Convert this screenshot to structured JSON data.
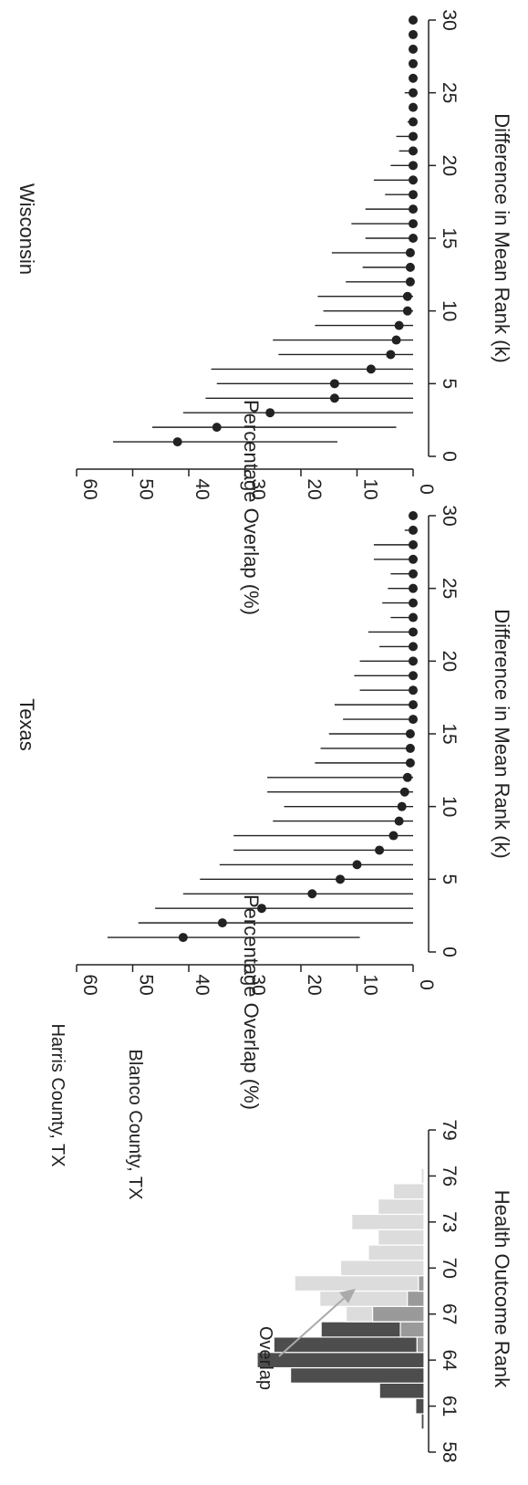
{
  "colors": {
    "harris": "#4d4d4d",
    "blanco": "#dcdcdc",
    "overlap": "#9a9a9a",
    "ink": "#222222",
    "arrow": "#aaaaaa"
  },
  "chart_data": [
    {
      "type": "bar",
      "title": "",
      "xlabel": "Health Outcome Rank",
      "ylabel": "",
      "xlim": [
        58,
        79
      ],
      "x_ticks": [
        58,
        61,
        64,
        67,
        70,
        73,
        76,
        79
      ],
      "annotations": {
        "harris_label": "Harris County, TX",
        "blanco_label": "Blanco County, TX",
        "overlap_label": "Overlap"
      },
      "bins": [
        {
          "rank": 60,
          "harris": 1,
          "blanco": 0,
          "overlap": 0
        },
        {
          "rank": 61,
          "harris": 3,
          "blanco": 0,
          "overlap": 0
        },
        {
          "rank": 62,
          "harris": 16,
          "blanco": 0,
          "overlap": 0
        },
        {
          "rank": 63,
          "harris": 48,
          "blanco": 0,
          "overlap": 0
        },
        {
          "rank": 64,
          "harris": 60,
          "blanco": 0,
          "overlap": 0
        },
        {
          "rank": 65,
          "harris": 54,
          "blanco": 2.5,
          "overlap": 2.5
        },
        {
          "rank": 66,
          "harris": 37,
          "blanco": 8.5,
          "overlap": 8.5
        },
        {
          "rank": 67,
          "harris": 18.5,
          "blanco": 28,
          "overlap": 18.5
        },
        {
          "rank": 68,
          "harris": 6,
          "blanco": 37.5,
          "overlap": 6
        },
        {
          "rank": 69,
          "harris": 2,
          "blanco": 46.5,
          "overlap": 2
        },
        {
          "rank": 70,
          "harris": 0,
          "blanco": 30,
          "overlap": 0
        },
        {
          "rank": 71,
          "harris": 0,
          "blanco": 20,
          "overlap": 0
        },
        {
          "rank": 72,
          "harris": 0,
          "blanco": 16.5,
          "overlap": 0
        },
        {
          "rank": 73,
          "harris": 0,
          "blanco": 26,
          "overlap": 0
        },
        {
          "rank": 74,
          "harris": 0,
          "blanco": 16.5,
          "overlap": 0
        },
        {
          "rank": 75,
          "harris": 0,
          "blanco": 11,
          "overlap": 0
        },
        {
          "rank": 76,
          "harris": 0,
          "blanco": 1,
          "overlap": 0
        }
      ]
    },
    {
      "type": "scatter",
      "title": "Texas",
      "xlabel": "Difference in Mean Rank (k)",
      "ylabel": "Percentage Overlap (%)",
      "xlim": [
        0,
        30
      ],
      "ylim": [
        0,
        60
      ],
      "x_ticks": [
        0,
        5,
        10,
        15,
        20,
        25,
        30
      ],
      "y_ticks": [
        0,
        10,
        20,
        30,
        40,
        50,
        60
      ],
      "points": [
        {
          "k": 1,
          "mean": 41,
          "low": 9.5,
          "high": 54.5
        },
        {
          "k": 2,
          "mean": 34,
          "low": 0,
          "high": 49
        },
        {
          "k": 3,
          "mean": 27,
          "low": 0,
          "high": 46
        },
        {
          "k": 4,
          "mean": 18,
          "low": 0,
          "high": 41
        },
        {
          "k": 5,
          "mean": 13,
          "low": 0,
          "high": 38
        },
        {
          "k": 6,
          "mean": 10,
          "low": 0,
          "high": 34.5
        },
        {
          "k": 7,
          "mean": 6,
          "low": 0,
          "high": 32
        },
        {
          "k": 8,
          "mean": 3.5,
          "low": 0,
          "high": 32
        },
        {
          "k": 9,
          "mean": 2.5,
          "low": 0,
          "high": 25
        },
        {
          "k": 10,
          "mean": 2,
          "low": 0,
          "high": 23
        },
        {
          "k": 11,
          "mean": 1.5,
          "low": 0,
          "high": 26
        },
        {
          "k": 12,
          "mean": 1,
          "low": 0,
          "high": 26
        },
        {
          "k": 13,
          "mean": 0.5,
          "low": 0,
          "high": 17.5
        },
        {
          "k": 14,
          "mean": 0.5,
          "low": 0,
          "high": 16.5
        },
        {
          "k": 15,
          "mean": 0.5,
          "low": 0,
          "high": 15
        },
        {
          "k": 16,
          "mean": 0,
          "low": 0,
          "high": 12.5
        },
        {
          "k": 17,
          "mean": 0,
          "low": 0,
          "high": 14
        },
        {
          "k": 18,
          "mean": 0,
          "low": 0,
          "high": 9.5
        },
        {
          "k": 19,
          "mean": 0,
          "low": 0,
          "high": 10.5
        },
        {
          "k": 20,
          "mean": 0,
          "low": 0,
          "high": 9.5
        },
        {
          "k": 21,
          "mean": 0,
          "low": 0,
          "high": 6
        },
        {
          "k": 22,
          "mean": 0,
          "low": 0,
          "high": 8
        },
        {
          "k": 23,
          "mean": 0,
          "low": 0,
          "high": 4
        },
        {
          "k": 24,
          "mean": 0,
          "low": 0,
          "high": 5.5
        },
        {
          "k": 25,
          "mean": 0,
          "low": 0,
          "high": 4.5
        },
        {
          "k": 26,
          "mean": 0,
          "low": 0,
          "high": 4
        },
        {
          "k": 27,
          "mean": 0,
          "low": 0,
          "high": 7
        },
        {
          "k": 28,
          "mean": 0,
          "low": 0,
          "high": 7
        },
        {
          "k": 29,
          "mean": 0,
          "low": 0,
          "high": 1.5
        },
        {
          "k": 30,
          "mean": 0,
          "low": 0,
          "high": 0.5
        }
      ]
    },
    {
      "type": "scatter",
      "title": "Wisconsin",
      "xlabel": "Difference in Mean Rank (k)",
      "ylabel": "Percentage Overlap (%)",
      "xlim": [
        0,
        30
      ],
      "ylim": [
        0,
        60
      ],
      "x_ticks": [
        0,
        5,
        10,
        15,
        20,
        25,
        30
      ],
      "y_ticks": [
        0,
        10,
        20,
        30,
        40,
        50,
        60
      ],
      "points": [
        {
          "k": 1,
          "mean": 42,
          "low": 13.5,
          "high": 53.5
        },
        {
          "k": 2,
          "mean": 35,
          "low": 3,
          "high": 46.5
        },
        {
          "k": 3,
          "mean": 25.5,
          "low": 0,
          "high": 41
        },
        {
          "k": 4,
          "mean": 14,
          "low": 0,
          "high": 37
        },
        {
          "k": 5,
          "mean": 14,
          "low": 0,
          "high": 35
        },
        {
          "k": 6,
          "mean": 7.5,
          "low": 0,
          "high": 36
        },
        {
          "k": 7,
          "mean": 4,
          "low": 0,
          "high": 24
        },
        {
          "k": 8,
          "mean": 3,
          "low": 0,
          "high": 25
        },
        {
          "k": 9,
          "mean": 2.5,
          "low": 0,
          "high": 17.5
        },
        {
          "k": 10,
          "mean": 1,
          "low": 0,
          "high": 16
        },
        {
          "k": 11,
          "mean": 1,
          "low": 0,
          "high": 17
        },
        {
          "k": 12,
          "mean": 0.5,
          "low": 0,
          "high": 12
        },
        {
          "k": 13,
          "mean": 0.5,
          "low": 0,
          "high": 9
        },
        {
          "k": 14,
          "mean": 0.5,
          "low": 0,
          "high": 14.5
        },
        {
          "k": 15,
          "mean": 0,
          "low": 0,
          "high": 8.5
        },
        {
          "k": 16,
          "mean": 0,
          "low": 0,
          "high": 11
        },
        {
          "k": 17,
          "mean": 0,
          "low": 0,
          "high": 8.5
        },
        {
          "k": 18,
          "mean": 0,
          "low": 0,
          "high": 5
        },
        {
          "k": 19,
          "mean": 0,
          "low": 0,
          "high": 7
        },
        {
          "k": 20,
          "mean": 0,
          "low": 0,
          "high": 4
        },
        {
          "k": 21,
          "mean": 0,
          "low": 0,
          "high": 2.5
        },
        {
          "k": 22,
          "mean": 0,
          "low": 0,
          "high": 3
        },
        {
          "k": 23,
          "mean": 0,
          "low": 0,
          "high": 1
        },
        {
          "k": 24,
          "mean": 0,
          "low": 0,
          "high": 0.5
        },
        {
          "k": 25,
          "mean": 0,
          "low": 0,
          "high": 1.5
        },
        {
          "k": 26,
          "mean": 0,
          "low": 0,
          "high": 0.5
        },
        {
          "k": 27,
          "mean": 0,
          "low": 0,
          "high": 0.3
        },
        {
          "k": 28,
          "mean": 0,
          "low": 0,
          "high": 0.3
        },
        {
          "k": 29,
          "mean": 0,
          "low": 0,
          "high": 0.3
        },
        {
          "k": 30,
          "mean": 0,
          "low": 0,
          "high": 0.3
        }
      ]
    }
  ]
}
